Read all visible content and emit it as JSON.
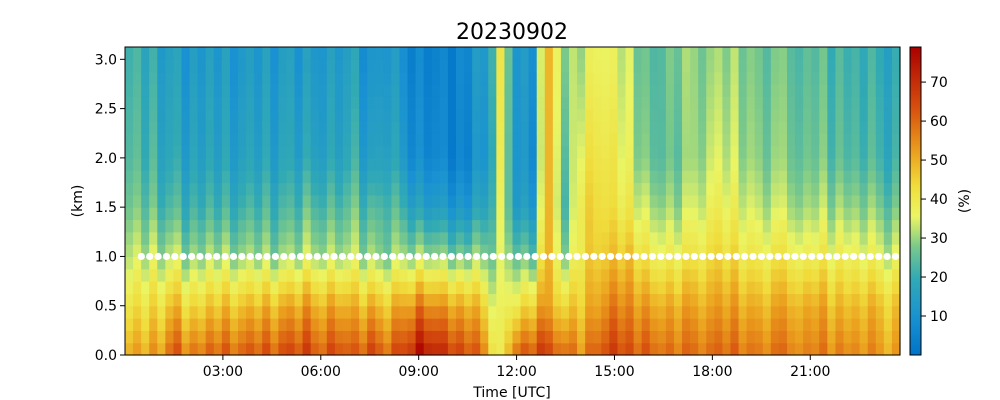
{
  "chart_data": {
    "type": "heatmap",
    "title": "20230902",
    "xlabel": "Time [UTC]",
    "ylabel": "(km)",
    "colorbar_label": "(%)",
    "x_unit": "hour",
    "xlim": [
      0,
      23.75
    ],
    "ylim": [
      0,
      3.125
    ],
    "x_ticks": [
      3,
      6,
      9,
      12,
      15,
      18,
      21
    ],
    "x_tick_labels": [
      "03:00",
      "06:00",
      "09:00",
      "12:00",
      "15:00",
      "18:00",
      "21:00"
    ],
    "y_ticks": [
      0,
      0.5,
      1.0,
      1.5,
      2.0,
      2.5,
      3.0
    ],
    "y_tick_labels": [
      "0.0",
      "0.5",
      "1.0",
      "1.5",
      "2.0",
      "2.5",
      "3.0"
    ],
    "colorbar_range": [
      0,
      79
    ],
    "colorbar_ticks": [
      10,
      20,
      30,
      40,
      50,
      60,
      70
    ],
    "colormap": "jet-like",
    "height_bins_km": [
      0.0625,
      0.1875,
      0.3125,
      0.4375,
      0.5625,
      0.6875,
      0.8125,
      0.9375,
      1.0625,
      1.1875,
      1.3125,
      1.4375,
      1.5625,
      1.6875,
      1.8125,
      1.9375,
      2.0625,
      2.1875,
      2.3125,
      2.4375,
      2.5625,
      2.6875,
      2.8125,
      2.9375,
      3.0625
    ],
    "time_anchor_hours": [
      0,
      1,
      1.5,
      2,
      3,
      4,
      5,
      5.5,
      6,
      6.5,
      7,
      7.5,
      8,
      8.5,
      9,
      9.5,
      10,
      10.5,
      11,
      11.5,
      12,
      12.5,
      13,
      13.5,
      14,
      14.5,
      15,
      15.5,
      16,
      17,
      18,
      19,
      20,
      21,
      22,
      23,
      23.75
    ],
    "profile_levels_km": [
      0.0,
      0.5,
      1.0,
      1.5,
      2.0,
      3.0
    ],
    "profiles_percent": [
      [
        50,
        40,
        32,
        27,
        24,
        22
      ],
      [
        52,
        42,
        32,
        24,
        20,
        17
      ],
      [
        60,
        46,
        30,
        20,
        15,
        12
      ],
      [
        58,
        44,
        30,
        22,
        17,
        14
      ],
      [
        60,
        46,
        30,
        20,
        15,
        12
      ],
      [
        62,
        48,
        30,
        22,
        16,
        13
      ],
      [
        64,
        50,
        30,
        22,
        17,
        14
      ],
      [
        66,
        52,
        32,
        24,
        16,
        12
      ],
      [
        60,
        48,
        30,
        22,
        15,
        12
      ],
      [
        66,
        52,
        32,
        24,
        17,
        14
      ],
      [
        58,
        46,
        30,
        24,
        18,
        14
      ],
      [
        66,
        50,
        30,
        22,
        13,
        9
      ],
      [
        62,
        48,
        30,
        26,
        20,
        16
      ],
      [
        64,
        50,
        30,
        20,
        12,
        8
      ],
      [
        76,
        56,
        30,
        14,
        6,
        4
      ],
      [
        72,
        54,
        30,
        14,
        7,
        5
      ],
      [
        68,
        52,
        28,
        12,
        5,
        5
      ],
      [
        64,
        50,
        28,
        12,
        6,
        8
      ],
      [
        56,
        44,
        28,
        16,
        10,
        12
      ],
      [
        36,
        34,
        32,
        34,
        36,
        38
      ],
      [
        60,
        40,
        26,
        14,
        12,
        12
      ],
      [
        64,
        46,
        26,
        14,
        10,
        12
      ],
      [
        66,
        52,
        50,
        50,
        50,
        50
      ],
      [
        58,
        42,
        26,
        20,
        22,
        26
      ],
      [
        56,
        48,
        44,
        44,
        40,
        34
      ],
      [
        62,
        52,
        46,
        44,
        42,
        38
      ],
      [
        66,
        56,
        46,
        40,
        38,
        34
      ],
      [
        64,
        56,
        48,
        40,
        36,
        34
      ],
      [
        60,
        50,
        38,
        30,
        24,
        22
      ],
      [
        58,
        50,
        38,
        30,
        26,
        28
      ],
      [
        60,
        52,
        44,
        38,
        34,
        30
      ],
      [
        58,
        50,
        40,
        34,
        30,
        28
      ],
      [
        58,
        50,
        40,
        32,
        28,
        26
      ],
      [
        56,
        50,
        38,
        30,
        26,
        24
      ],
      [
        56,
        48,
        38,
        30,
        24,
        22
      ],
      [
        54,
        48,
        36,
        28,
        22,
        20
      ],
      [
        52,
        46,
        34,
        26,
        20,
        18
      ]
    ],
    "column_jitter_percent": [
      0,
      3,
      -2,
      4,
      -3,
      2,
      5,
      -4,
      1,
      -2,
      3,
      -1,
      4,
      -3,
      0,
      2,
      -2,
      3,
      -4,
      1,
      2,
      -3,
      4,
      0,
      -1,
      3,
      -2,
      1,
      5,
      -3,
      2,
      -1,
      -4,
      3,
      1,
      -2,
      4,
      -1,
      0,
      2,
      -3,
      1,
      -2,
      4,
      0,
      -4,
      3,
      1,
      -1,
      2,
      -3,
      4,
      0,
      -2,
      1,
      3,
      -4,
      2,
      -1,
      0,
      3,
      -2,
      1,
      -3,
      4,
      0,
      -1,
      2,
      -2,
      3,
      1,
      -3,
      0,
      2,
      -1,
      4,
      -2,
      1,
      0,
      -3,
      2,
      3,
      -1,
      -2,
      1,
      0,
      4,
      -3,
      2,
      -1,
      1,
      -2,
      3,
      0,
      -4,
      2
    ],
    "boundary_layer_marker": {
      "height_km": 1.0,
      "x_start_hour": 0.5,
      "x_end_hour": 23.75,
      "spacing_hours": 0.2568,
      "color": "#ffffff"
    }
  }
}
